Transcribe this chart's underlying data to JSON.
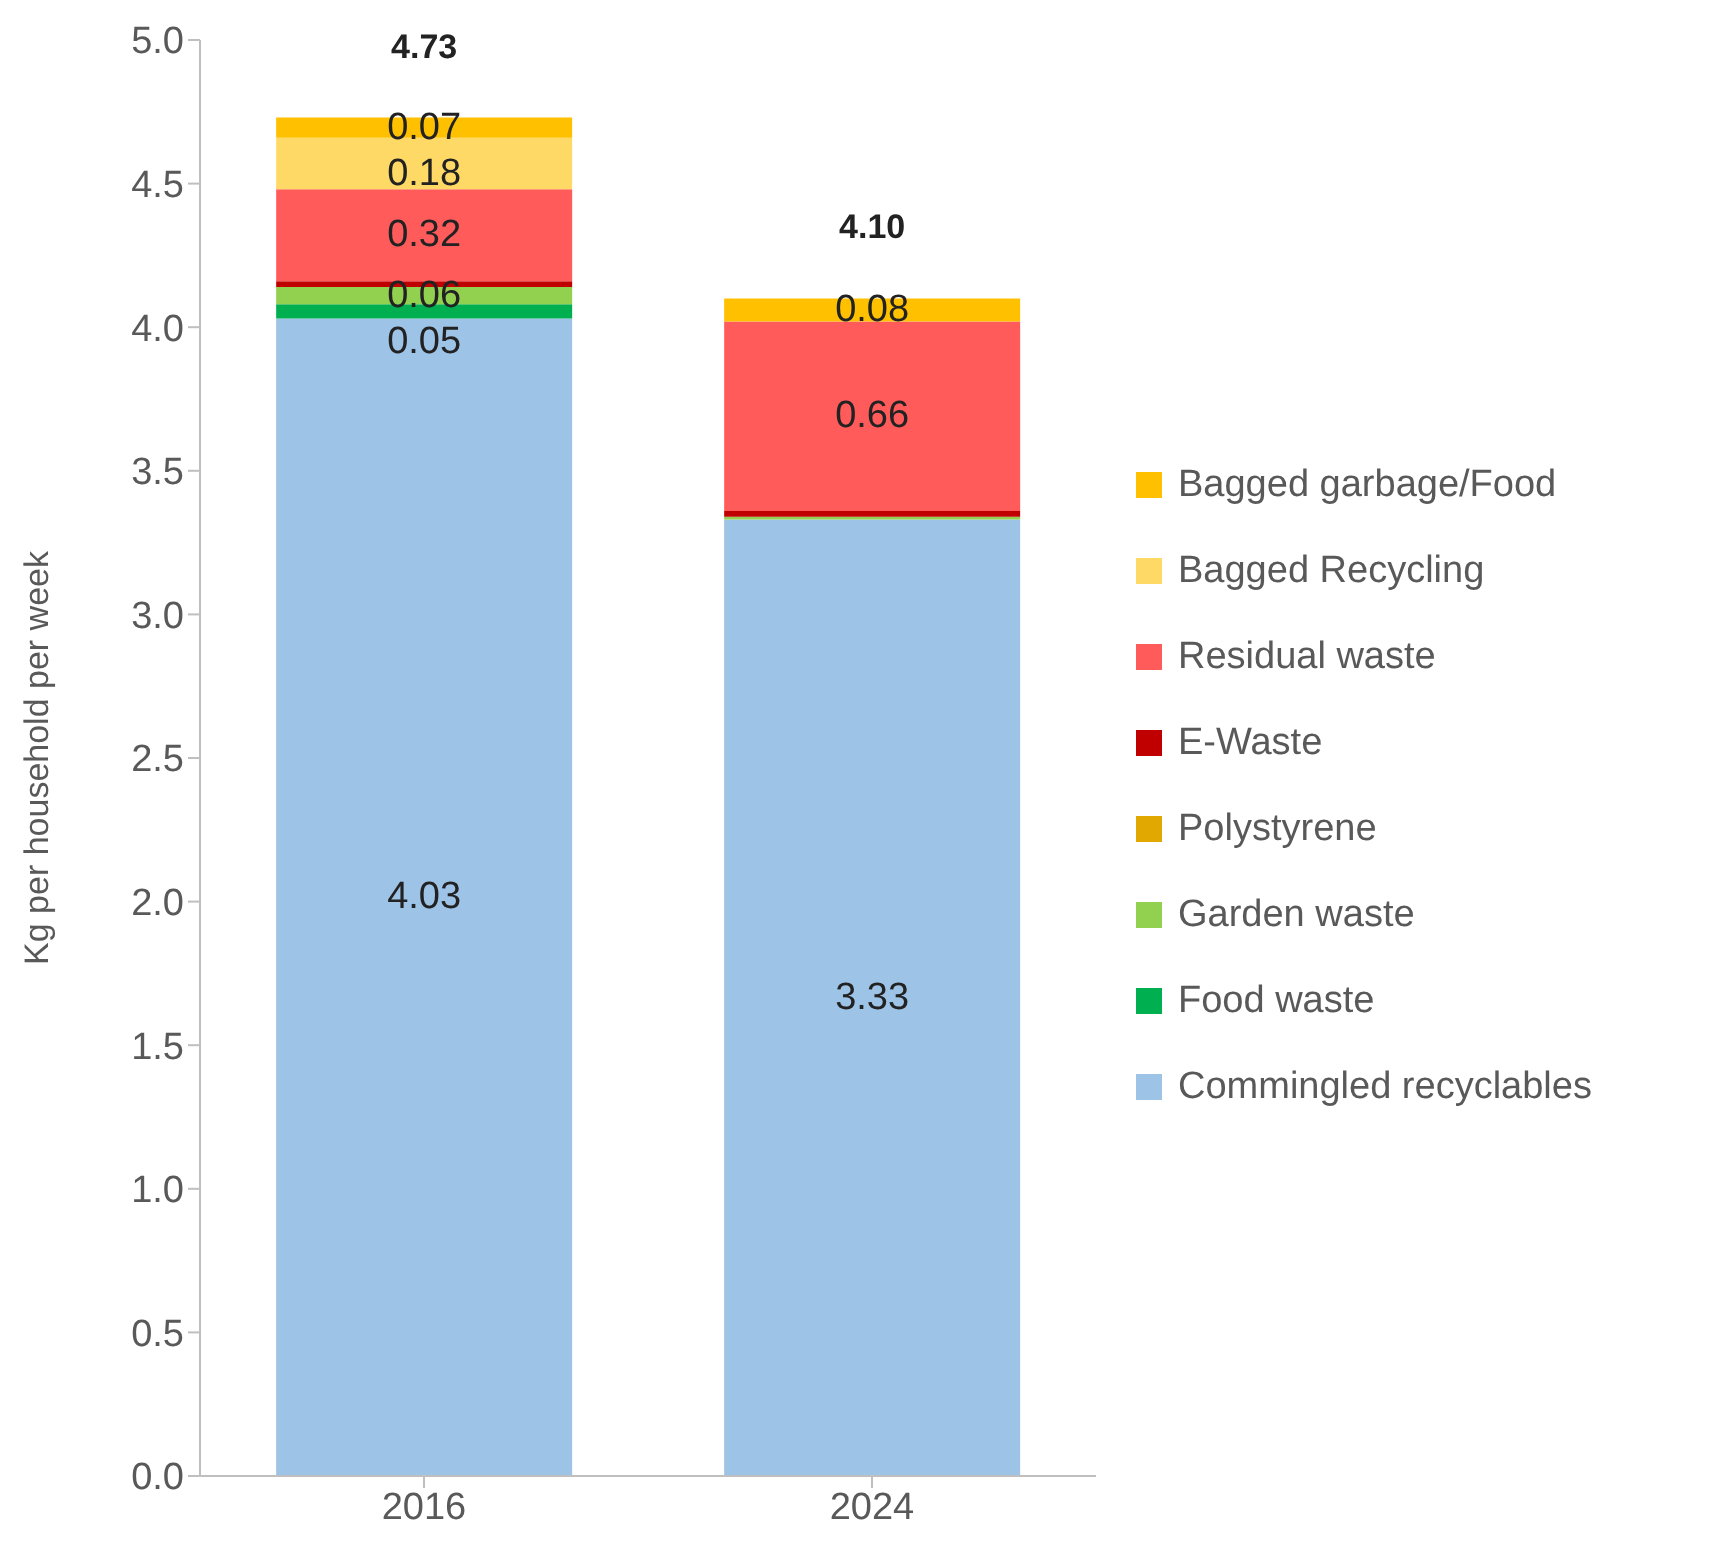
{
  "chart_data": {
    "type": "bar",
    "stacked": true,
    "ylabel": "Kg per household per week",
    "categories": [
      "2016",
      "2024"
    ],
    "series": [
      {
        "name": "Commingled recyclables",
        "color": "#9dc3e6",
        "values": [
          4.03,
          3.33
        ],
        "value_labels": [
          "4.03",
          "3.33"
        ]
      },
      {
        "name": "Food waste",
        "color": "#00b050",
        "values": [
          0.05,
          0
        ],
        "value_labels": [
          "0.05",
          null
        ]
      },
      {
        "name": "Garden waste",
        "color": "#92d050",
        "values": [
          0.06,
          0.01
        ],
        "value_labels": [
          "0.06",
          null
        ]
      },
      {
        "name": "Polystyrene",
        "color": "#e0a800",
        "values": [
          0,
          0
        ],
        "value_labels": [
          null,
          null
        ]
      },
      {
        "name": "E-Waste",
        "color": "#c00000",
        "values": [
          0.02,
          0.02
        ],
        "value_labels": [
          null,
          null
        ]
      },
      {
        "name": "Residual waste",
        "color": "#ff5b5b",
        "values": [
          0.32,
          0.66
        ],
        "value_labels": [
          "0.32",
          "0.66"
        ]
      },
      {
        "name": "Bagged Recycling",
        "color": "#ffd966",
        "values": [
          0.18,
          0
        ],
        "value_labels": [
          "0.18",
          null
        ]
      },
      {
        "name": "Bagged garbage/Food",
        "color": "#ffc000",
        "values": [
          0.07,
          0.08
        ],
        "value_labels": [
          "0.07",
          "0.08"
        ]
      }
    ],
    "totals": [
      "4.73",
      "4.10"
    ],
    "ylim": [
      0,
      5
    ],
    "yticks": [
      {
        "value": 0,
        "label": "0.0"
      },
      {
        "value": 0.5,
        "label": "0.5"
      },
      {
        "value": 1,
        "label": "1.0"
      },
      {
        "value": 1.5,
        "label": "1.5"
      },
      {
        "value": 2,
        "label": "2.0"
      },
      {
        "value": 2.5,
        "label": "2.5"
      },
      {
        "value": 3,
        "label": "3.0"
      },
      {
        "value": 3.5,
        "label": "3.5"
      },
      {
        "value": 4,
        "label": "4.0"
      },
      {
        "value": 4.5,
        "label": "4.5"
      },
      {
        "value": 5,
        "label": "5.0"
      }
    ],
    "grid": false,
    "legend": "right"
  }
}
